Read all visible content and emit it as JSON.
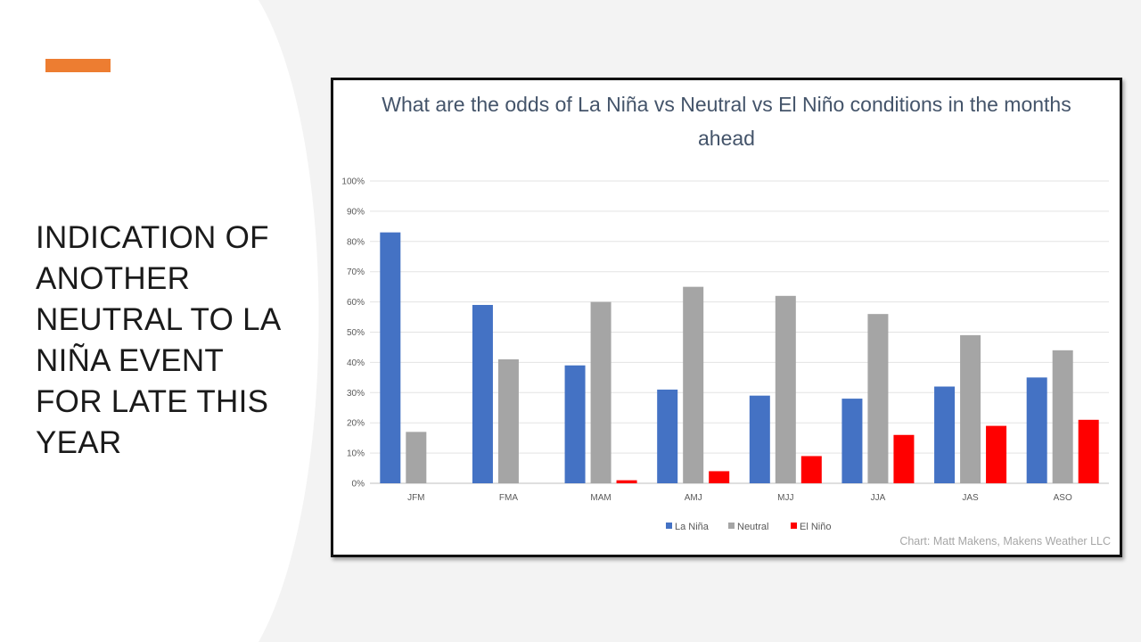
{
  "slide": {
    "title_lines": [
      "INDICATION OF",
      "ANOTHER",
      "NEUTRAL TO LA",
      "NIÑA EVENT",
      "FOR LATE THIS",
      "YEAR"
    ],
    "accent_color": "#ED7D31"
  },
  "chart_data": {
    "type": "bar",
    "title_lines": [
      "What are the odds of La Niña vs Neutral vs El Niño conditions in the months",
      "ahead"
    ],
    "categories": [
      "JFM",
      "FMA",
      "MAM",
      "AMJ",
      "MJJ",
      "JJA",
      "JAS",
      "ASO"
    ],
    "series": [
      {
        "name": "La Niña",
        "color": "#4472C4",
        "values": [
          83,
          59,
          39,
          31,
          29,
          28,
          32,
          35
        ]
      },
      {
        "name": "Neutral",
        "color": "#A5A5A5",
        "values": [
          17,
          41,
          60,
          65,
          62,
          56,
          49,
          44
        ]
      },
      {
        "name": "El Niño",
        "color": "#FF0000",
        "values": [
          0,
          0,
          1,
          4,
          9,
          16,
          19,
          21
        ]
      }
    ],
    "yticks": [
      "0%",
      "10%",
      "20%",
      "30%",
      "40%",
      "50%",
      "60%",
      "70%",
      "80%",
      "90%",
      "100%"
    ],
    "ylim": [
      0,
      100
    ],
    "grid": true,
    "legend_position": "bottom",
    "credit": "Chart: Matt Makens, Makens Weather LLC"
  }
}
